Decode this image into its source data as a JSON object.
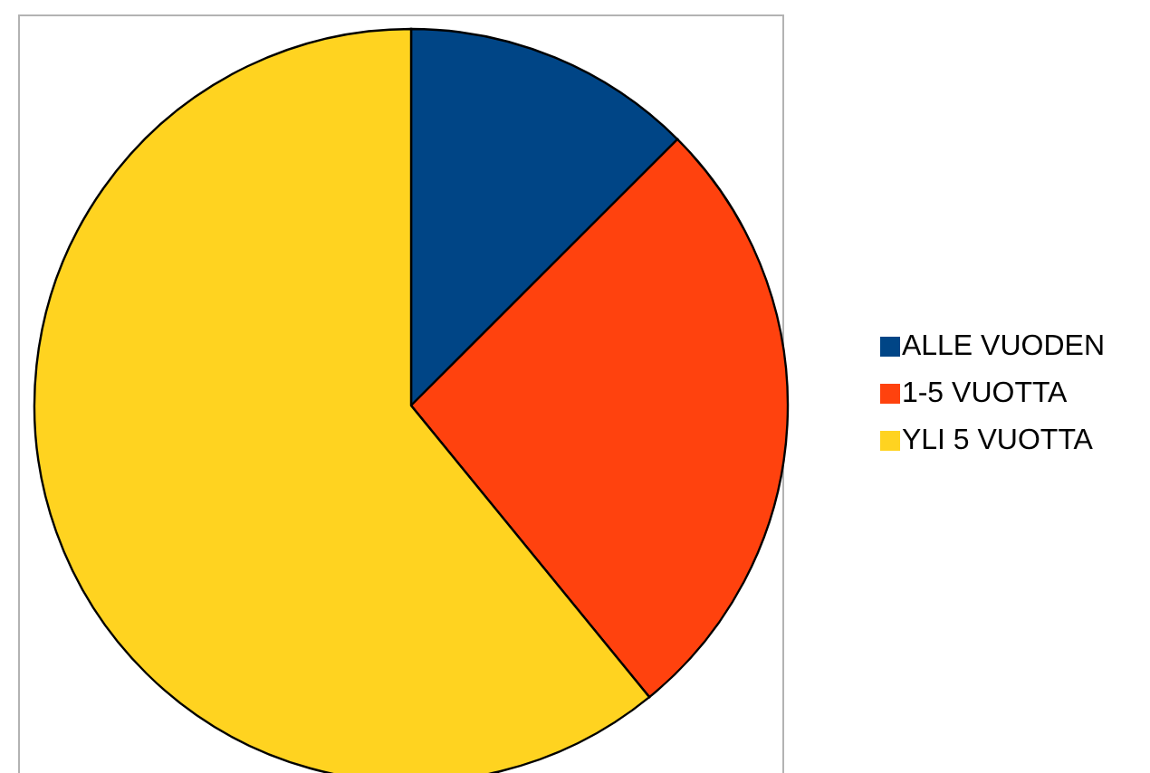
{
  "chart_data": {
    "type": "pie",
    "categories": [
      "ALLE VUODEN",
      "1-5 VUOTTA",
      "YLI 5 VUOTTA"
    ],
    "values": [
      12.5,
      26.6,
      60.9
    ],
    "colors": [
      "#004586",
      "#ff420e",
      "#ffd320"
    ],
    "legend": "right"
  }
}
